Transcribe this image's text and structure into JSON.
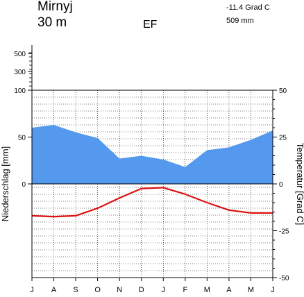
{
  "header": {
    "station": "Mirnyj",
    "elevation": "30 m",
    "climate_class": "EF",
    "mean_temperature": "-11.4 Grad C",
    "annual_precipitation": "509 mm"
  },
  "chart_data": {
    "type": "line",
    "title": "",
    "categories": [
      "J",
      "A",
      "S",
      "O",
      "N",
      "D",
      "J",
      "F",
      "M",
      "A",
      "M",
      "J"
    ],
    "y_left_label": "Niederschlag [mm]",
    "y_right_label": "Temperatur [Grad C]",
    "y_left_ticks": [
      0,
      50,
      100
    ],
    "y_left_upper_ticks": [
      300,
      500
    ],
    "y_right_ticks": [
      -50,
      -25,
      0,
      25,
      50
    ],
    "y_right_range": [
      -50,
      50
    ],
    "y_left_range": [
      0,
      100
    ],
    "grid": true,
    "series": [
      {
        "name": "Niederschlag",
        "kind": "area",
        "axis": "left",
        "color": "#5599ee",
        "values": [
          60,
          63,
          55,
          49,
          27,
          30,
          26,
          18,
          36,
          39,
          47,
          57
        ]
      },
      {
        "name": "Temperatur",
        "kind": "line",
        "axis": "right",
        "color": "#dd1111",
        "values": [
          -17,
          -17.5,
          -17,
          -13,
          -7.5,
          -2.5,
          -2,
          -5.5,
          -10,
          -14,
          -15.5,
          -15.5
        ]
      }
    ]
  }
}
